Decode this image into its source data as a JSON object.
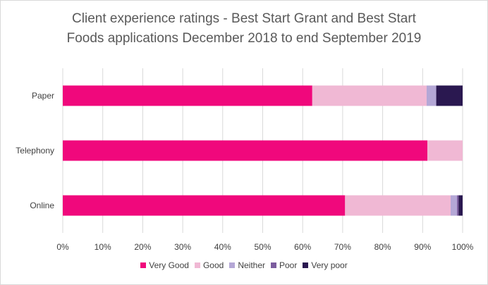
{
  "chart_data": {
    "type": "bar",
    "orientation": "horizontal",
    "stacked": true,
    "title": [
      "Client experience ratings - Best Start Grant and Best Start",
      "Foods applications December 2018 to end September 2019"
    ],
    "categories": [
      "Paper",
      "Telephony",
      "Online"
    ],
    "series": [
      {
        "name": "Very Good",
        "color": "#f0087c",
        "values": [
          62.4,
          91.2,
          70.6
        ]
      },
      {
        "name": "Good",
        "color": "#f0b8d4",
        "values": [
          28.6,
          8.8,
          26.4
        ]
      },
      {
        "name": "Neither",
        "color": "#b4a7d6",
        "values": [
          2.4,
          0,
          1.6
        ]
      },
      {
        "name": "Poor",
        "color": "#7b5c9e",
        "values": [
          0,
          0,
          0.4
        ]
      },
      {
        "name": "Very poor",
        "color": "#2a1850",
        "values": [
          6.6,
          0,
          1.0
        ]
      }
    ],
    "xlim": [
      0,
      100
    ],
    "xticks": [
      "0%",
      "10%",
      "20%",
      "30%",
      "40%",
      "50%",
      "60%",
      "70%",
      "80%",
      "90%",
      "100%"
    ],
    "grid": true,
    "legend_position": "bottom"
  }
}
